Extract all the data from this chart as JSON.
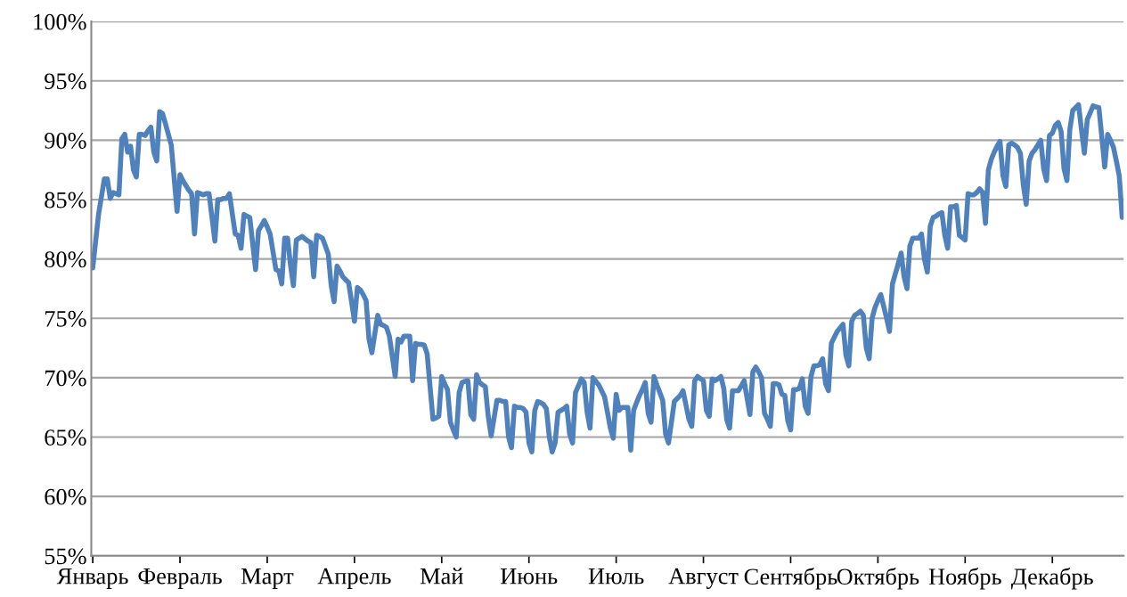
{
  "chart_data": {
    "type": "line",
    "categories": [
      "Январь",
      null,
      null,
      null,
      null,
      null,
      null,
      null,
      null,
      null,
      null,
      null,
      null,
      null,
      null,
      null,
      null,
      null,
      null,
      null,
      null,
      null,
      null,
      null,
      null,
      null,
      null,
      null,
      null,
      null,
      "Февраль",
      null,
      null,
      null,
      null,
      null,
      null,
      null,
      null,
      null,
      null,
      null,
      null,
      null,
      null,
      null,
      null,
      null,
      null,
      null,
      null,
      null,
      null,
      null,
      null,
      null,
      null,
      null,
      null,
      null,
      "Март",
      null,
      null,
      null,
      null,
      null,
      null,
      null,
      null,
      null,
      null,
      null,
      null,
      null,
      null,
      null,
      null,
      null,
      null,
      null,
      null,
      null,
      null,
      null,
      null,
      null,
      null,
      null,
      null,
      null,
      "Апрель",
      null,
      null,
      null,
      null,
      null,
      null,
      null,
      null,
      null,
      null,
      null,
      null,
      null,
      null,
      null,
      null,
      null,
      null,
      null,
      null,
      null,
      null,
      null,
      null,
      null,
      null,
      null,
      null,
      null,
      "Май",
      null,
      null,
      null,
      null,
      null,
      null,
      null,
      null,
      null,
      null,
      null,
      null,
      null,
      null,
      null,
      null,
      null,
      null,
      null,
      null,
      null,
      null,
      null,
      null,
      null,
      null,
      null,
      null,
      null,
      "Июнь",
      null,
      null,
      null,
      null,
      null,
      null,
      null,
      null,
      null,
      null,
      null,
      null,
      null,
      null,
      null,
      null,
      null,
      null,
      null,
      null,
      null,
      null,
      null,
      null,
      null,
      null,
      null,
      null,
      null,
      "Июль",
      null,
      null,
      null,
      null,
      null,
      null,
      null,
      null,
      null,
      null,
      null,
      null,
      null,
      null,
      null,
      null,
      null,
      null,
      null,
      null,
      null,
      null,
      null,
      null,
      null,
      null,
      null,
      null,
      null,
      "Август",
      null,
      null,
      null,
      null,
      null,
      null,
      null,
      null,
      null,
      null,
      null,
      null,
      null,
      null,
      null,
      null,
      null,
      null,
      null,
      null,
      null,
      null,
      null,
      null,
      null,
      null,
      null,
      null,
      null,
      "Сентябрь",
      null,
      null,
      null,
      null,
      null,
      null,
      null,
      null,
      null,
      null,
      null,
      null,
      null,
      null,
      null,
      null,
      null,
      null,
      null,
      null,
      null,
      null,
      null,
      null,
      null,
      null,
      null,
      null,
      null,
      "Октябрь",
      null,
      null,
      null,
      null,
      null,
      null,
      null,
      null,
      null,
      null,
      null,
      null,
      null,
      null,
      null,
      null,
      null,
      null,
      null,
      null,
      null,
      null,
      null,
      null,
      null,
      null,
      null,
      null,
      null,
      "Ноябрь",
      null,
      null,
      null,
      null,
      null,
      null,
      null,
      null,
      null,
      null,
      null,
      null,
      null,
      null,
      null,
      null,
      null,
      null,
      null,
      null,
      null,
      null,
      null,
      null,
      null,
      null,
      null,
      null,
      null,
      "Декабрь",
      null,
      null,
      null,
      null,
      null,
      null,
      null,
      null,
      null,
      null,
      null,
      null,
      null,
      null,
      null,
      null,
      null,
      null,
      null,
      null,
      null,
      null,
      null,
      null
    ],
    "series": [
      {
        "color": "#4f81bd",
        "values": [
          79.25,
          81.5,
          83.75,
          85.25,
          86.75,
          86.75,
          85.1,
          85.6,
          85.5,
          85.4,
          90.1,
          90.5,
          89,
          89.5,
          87.5,
          86.9,
          90.5,
          90.5,
          90.4,
          90.8,
          91.1,
          89,
          88.25,
          92.4,
          92.25,
          91.4,
          90.5,
          89.6,
          86.8,
          84,
          87.1,
          86.6,
          86.2,
          85.8,
          85.5,
          82.1,
          85.6,
          85.5,
          85.4,
          85.5,
          85.5,
          83.5,
          81.5,
          85,
          85,
          85.1,
          85.1,
          85.5,
          83.8,
          82.1,
          82,
          80.9,
          83.75,
          83.6,
          83.5,
          81.3,
          79.1,
          82.4,
          82.8,
          83.25,
          82.7,
          82.1,
          80.6,
          79.1,
          79,
          77.9,
          81.75,
          81.75,
          79.5,
          77.75,
          81.6,
          81.75,
          81.9,
          81.7,
          81.5,
          81.4,
          78.5,
          82,
          81.9,
          81.75,
          81.1,
          80.4,
          77.75,
          76.4,
          79.4,
          79,
          78.5,
          78.25,
          78,
          76.4,
          74.75,
          77.6,
          77.4,
          77,
          76.5,
          73.25,
          72.1,
          73.7,
          75.25,
          74.5,
          74.4,
          74.25,
          73.5,
          71.8,
          70.1,
          73.25,
          73,
          73.5,
          73.5,
          73.5,
          69.75,
          72.9,
          72.8,
          72.8,
          72.75,
          72,
          69.25,
          66.5,
          66.6,
          66.75,
          70.1,
          69.5,
          69,
          66.25,
          65.6,
          65,
          68.75,
          69.6,
          69.7,
          69.75,
          66.9,
          66.5,
          70.25,
          69.6,
          69.4,
          69.25,
          66.75,
          65.1,
          66.6,
          68.1,
          68.1,
          68,
          68,
          65,
          64.1,
          67.6,
          67.5,
          67.5,
          67.4,
          67.1,
          64.5,
          63.75,
          67.25,
          68,
          67.9,
          67.75,
          67.4,
          65,
          63.75,
          64.5,
          67.1,
          67.25,
          67.4,
          67.6,
          65.25,
          64.5,
          68.75,
          69.3,
          69.9,
          69.6,
          67.1,
          65.75,
          70,
          69.7,
          69.4,
          68.9,
          68.4,
          67.1,
          65.75,
          64.9,
          68.6,
          67.25,
          67.5,
          67.5,
          67.5,
          63.9,
          67.25,
          67.9,
          68.5,
          69,
          69.6,
          67,
          66.25,
          70.1,
          69.4,
          68.75,
          68.1,
          65.25,
          64.5,
          66.25,
          68,
          68.25,
          68.5,
          68.9,
          67.7,
          66.5,
          65.9,
          69.75,
          70.1,
          69.9,
          69.75,
          67.25,
          66.75,
          69.9,
          69.75,
          69.9,
          70.1,
          69.1,
          66.5,
          65.75,
          68.9,
          68.9,
          68.9,
          69.3,
          69.75,
          68.3,
          66.9,
          70.5,
          70.9,
          70.5,
          70,
          67,
          66.5,
          65.9,
          69.5,
          69.5,
          69.4,
          68.6,
          68.5,
          66.4,
          65.6,
          69,
          69,
          69.1,
          69.9,
          67.6,
          67,
          70.1,
          71,
          71,
          71.1,
          71.6,
          69.5,
          68.9,
          72.9,
          73.4,
          73.9,
          74.2,
          74.5,
          71.9,
          71,
          74.75,
          75.25,
          75.4,
          75.6,
          75.25,
          72.5,
          71.6,
          75,
          75.9,
          76.5,
          77,
          76,
          75,
          73.9,
          77.9,
          78.75,
          79.6,
          80.5,
          78.5,
          77.5,
          81.1,
          81.75,
          81.75,
          81.75,
          82.1,
          80,
          78.9,
          82.75,
          83.5,
          83.6,
          83.8,
          83.9,
          82,
          80.9,
          84.4,
          84.4,
          84.5,
          82,
          81.8,
          81.6,
          85.5,
          85.4,
          85.4,
          85.6,
          85.9,
          85.6,
          83,
          87.5,
          88.4,
          89,
          89.5,
          89.9,
          87,
          86.1,
          89.6,
          89.75,
          89.6,
          89.4,
          88.9,
          86.25,
          84.6,
          88.25,
          88.9,
          89.2,
          89.6,
          90,
          87.6,
          86.6,
          90.4,
          90.6,
          91.25,
          91.5,
          90.75,
          87.6,
          86.6,
          90.9,
          92.5,
          92.75,
          93,
          90.9,
          88.9,
          91.75,
          92.3,
          92.9,
          92.8,
          92.75,
          90.25,
          87.75,
          90.5,
          90,
          89.4,
          88.25,
          87,
          83.5
        ]
      }
    ],
    "ylim": [
      55,
      100
    ],
    "yticks": [
      {
        "value": 55,
        "label": "55%"
      },
      {
        "value": 60,
        "label": "60%"
      },
      {
        "value": 65,
        "label": "65%"
      },
      {
        "value": 70,
        "label": "70%"
      },
      {
        "value": 75,
        "label": "75%"
      },
      {
        "value": 80,
        "label": "80%"
      },
      {
        "value": 85,
        "label": "85%"
      },
      {
        "value": 90,
        "label": "90%"
      },
      {
        "value": 95,
        "label": "95%"
      },
      {
        "value": 100,
        "label": "100%"
      }
    ],
    "grid": "y",
    "legend": false,
    "marker": "none",
    "line_style": "solid"
  }
}
